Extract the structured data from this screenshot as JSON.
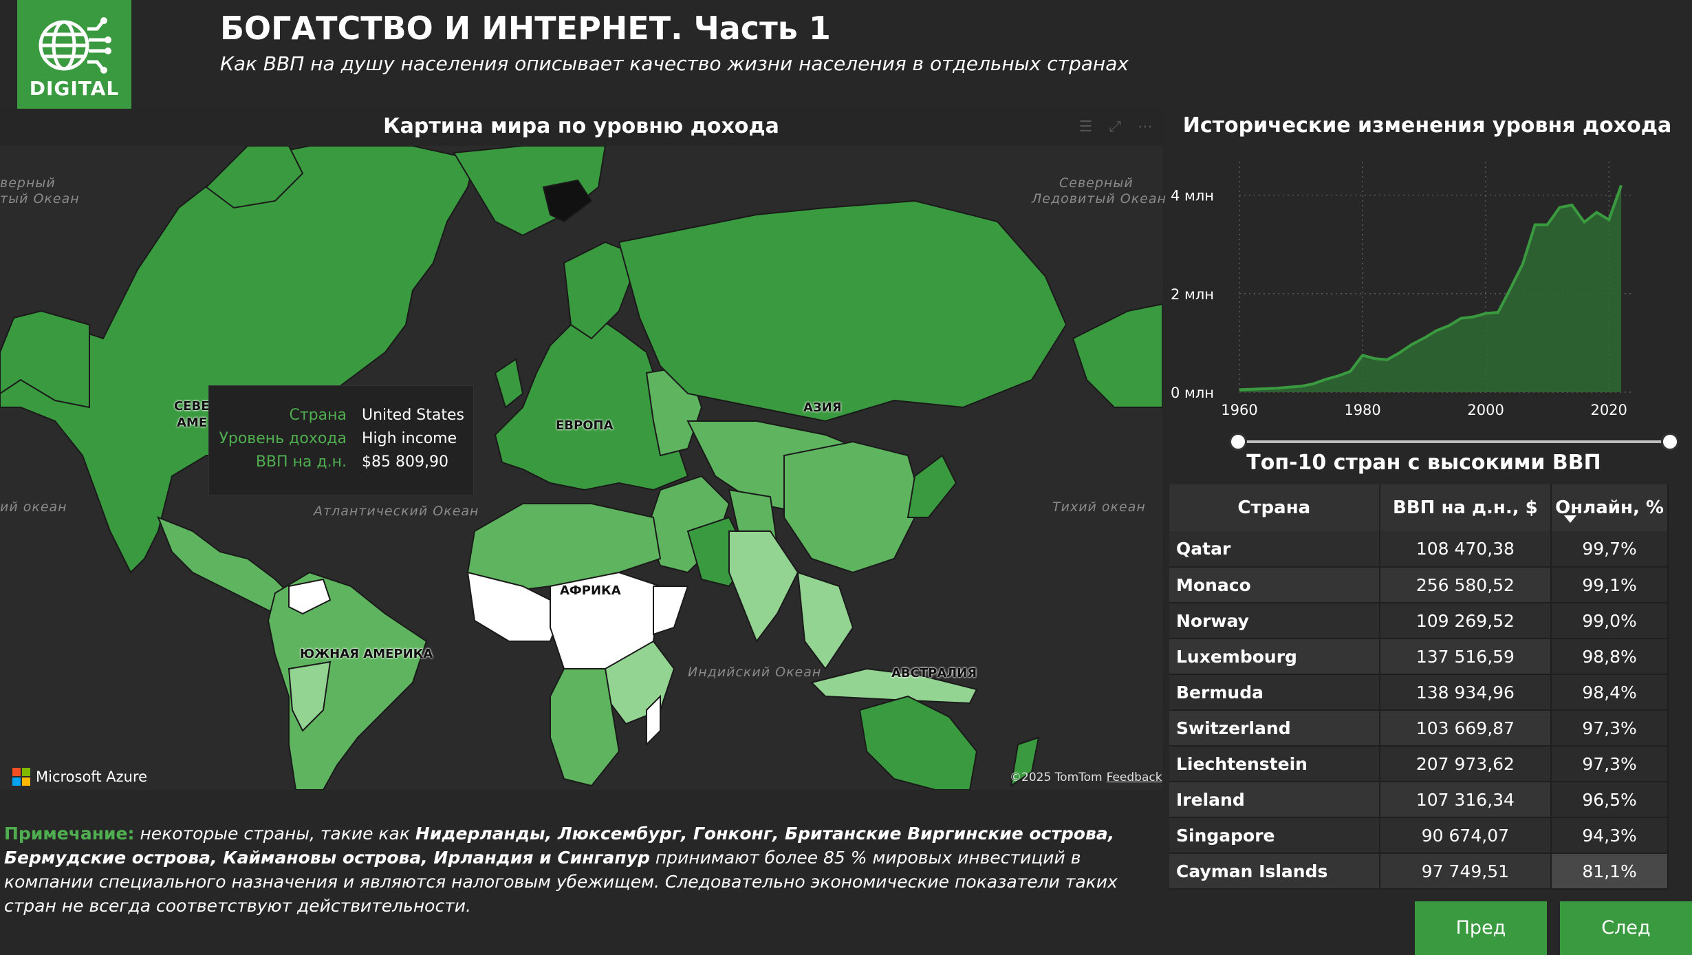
{
  "logo": {
    "text": "DIGITAL",
    "icon": "globe-network-icon"
  },
  "header": {
    "title": "БОГАТСТВО И ИНТЕРНЕТ. Часть 1",
    "subtitle": "Как ВВП на душу населения описывает качество жизни населения в отдельных странах"
  },
  "map": {
    "title": "Картина мира по уровню дохода",
    "toolbar_icons": [
      "filter-icon",
      "focus-mode-icon",
      "more-options-icon"
    ],
    "oceans": [
      "верный",
      "тый Океан",
      "Северный",
      "Ледовитый Океан",
      "ий океан",
      "Атлантический Океан",
      "Тихий океан",
      "Индийский Океан"
    ],
    "continents": [
      "СЕВЕ",
      "АМЕ",
      "ЕВРОПА",
      "АЗИЯ",
      "АФРИКА",
      "ЮЖНАЯ АМЕРИКА",
      "АВСТРАЛИЯ"
    ],
    "tooltip": {
      "country_label": "Страна",
      "country_value": "United States",
      "income_label": "Уровень дохода",
      "income_value": "High income",
      "gdp_label": "ВВП на д.н.",
      "gdp_value": "$85 809,90"
    },
    "attribution": {
      "brand": "Microsoft Azure",
      "copyright": "©2025 TomTom",
      "feedback": "Feedback"
    },
    "colors": {
      "high": "#3a9a3f",
      "upper_middle": "#5fb55f",
      "lower_middle": "#93d493",
      "low": "#ffffff"
    }
  },
  "note": {
    "label": "Примечание:",
    "t1": " некоторые страны, такие как ",
    "countries": "Нидерланды, Люксембург, Гонконг, Британские Виргинские острова, Бермудские острова, Каймановы острова, Ирландия и Сингапур",
    "t2": " принимают более 85 % мировых инвестиций в компании специального назначения и являются налоговым убежищем. Следовательно экономические показатели таких стран не всегда соответствуют действительности."
  },
  "history": {
    "title": "Исторические изменения уровня дохода",
    "y_ticks": [
      "0 млн",
      "2 млн",
      "4 млн"
    ],
    "x_ticks": [
      "1960",
      "1980",
      "2000",
      "2020"
    ]
  },
  "chart_data": {
    "type": "area",
    "x": [
      1960,
      1962,
      1964,
      1966,
      1968,
      1970,
      1972,
      1974,
      1976,
      1978,
      1980,
      1982,
      1984,
      1986,
      1988,
      1990,
      1992,
      1994,
      1996,
      1998,
      2000,
      2002,
      2004,
      2006,
      2008,
      2010,
      2012,
      2014,
      2016,
      2018,
      2020,
      2022
    ],
    "values": [
      0.05,
      0.06,
      0.07,
      0.08,
      0.1,
      0.12,
      0.17,
      0.26,
      0.33,
      0.42,
      0.75,
      0.68,
      0.66,
      0.8,
      0.97,
      1.1,
      1.25,
      1.35,
      1.5,
      1.53,
      1.6,
      1.62,
      2.1,
      2.6,
      3.4,
      3.4,
      3.75,
      3.8,
      3.45,
      3.65,
      3.5,
      4.2
    ],
    "ylim": [
      0,
      4.4
    ],
    "xlim": [
      1960,
      2024
    ],
    "y_unit": "млн",
    "grid": true
  },
  "top10": {
    "title": "Топ-10 стран с высокими ВВП",
    "headers": [
      "Страна",
      "ВВП на д.н., $",
      "Онлайн, %"
    ],
    "rows": [
      {
        "country": "Qatar",
        "gdp": "108 470,38",
        "online": "99,7%"
      },
      {
        "country": "Monaco",
        "gdp": "256 580,52",
        "online": "99,1%"
      },
      {
        "country": "Norway",
        "gdp": "109 269,52",
        "online": "99,0%"
      },
      {
        "country": "Luxembourg",
        "gdp": "137 516,59",
        "online": "98,8%"
      },
      {
        "country": "Bermuda",
        "gdp": "138 934,96",
        "online": "98,4%"
      },
      {
        "country": "Switzerland",
        "gdp": "103 669,87",
        "online": "97,3%"
      },
      {
        "country": "Liechtenstein",
        "gdp": "207 973,62",
        "online": "97,3%"
      },
      {
        "country": "Ireland",
        "gdp": "107 316,34",
        "online": "96,5%"
      },
      {
        "country": "Singapore",
        "gdp": "90 674,07",
        "online": "94,3%"
      },
      {
        "country": "Cayman Islands",
        "gdp": "97 749,51",
        "online": "81,1%"
      }
    ]
  },
  "nav": {
    "prev": "Пред",
    "next": "След"
  }
}
